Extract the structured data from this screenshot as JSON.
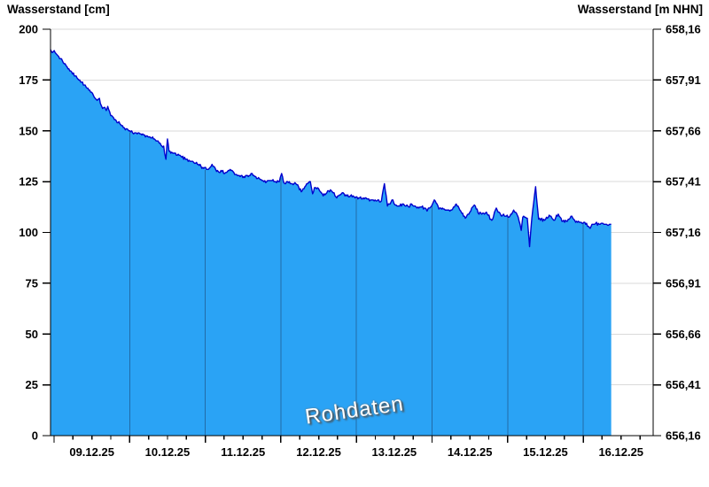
{
  "chart_data": {
    "type": "area",
    "title_left": "Wasserstand [cm]",
    "title_right": "Wasserstand [m NHN]",
    "watermark": "Rohdaten",
    "x_axis": {
      "tick_labels": [
        "09.12.25",
        "10.12.25",
        "11.12.25",
        "12.12.25",
        "13.12.25",
        "14.12.25",
        "15.12.25",
        "16.12.25"
      ],
      "major_ticks_days": [
        0,
        1,
        2,
        3,
        4,
        5,
        6,
        7
      ],
      "minor_step_days": 0.25,
      "domain_days": [
        -0.047,
        7.925
      ]
    },
    "y_left_axis": {
      "label": "Wasserstand [cm]",
      "min": 0,
      "max": 200,
      "tick_step": 25,
      "tick_labels": [
        "0",
        "25",
        "50",
        "75",
        "100",
        "125",
        "150",
        "175",
        "200"
      ]
    },
    "y_right_axis": {
      "label": "Wasserstand [m NHN]",
      "tick_labels": [
        "656,16",
        "656,41",
        "656,66",
        "656,91",
        "657,16",
        "657,41",
        "657,66",
        "657,91",
        "658,16"
      ]
    },
    "grid": {
      "horizontal": true,
      "day_boundary_lines": true
    },
    "series": [
      {
        "name": "Rohdaten",
        "unit": "cm",
        "points": [
          [
            -0.047,
            190
          ],
          [
            -0.01,
            189
          ],
          [
            0.05,
            187
          ],
          [
            0.11,
            184.5
          ],
          [
            0.16,
            182
          ],
          [
            0.22,
            179.5
          ],
          [
            0.28,
            177
          ],
          [
            0.34,
            175
          ],
          [
            0.4,
            172.5
          ],
          [
            0.46,
            170
          ],
          [
            0.52,
            167.5
          ],
          [
            0.57,
            165
          ],
          [
            0.6,
            166
          ],
          [
            0.63,
            162
          ],
          [
            0.66,
            161.5
          ],
          [
            0.69,
            160
          ],
          [
            0.71,
            162
          ],
          [
            0.75,
            157.5
          ],
          [
            0.81,
            155.5
          ],
          [
            0.87,
            153.5
          ],
          [
            0.93,
            151.5
          ],
          [
            0.99,
            150
          ],
          [
            1.04,
            149
          ],
          [
            1.1,
            148.5
          ],
          [
            1.16,
            148
          ],
          [
            1.22,
            147.5
          ],
          [
            1.28,
            146.5
          ],
          [
            1.34,
            145.5
          ],
          [
            1.39,
            144
          ],
          [
            1.45,
            142.5
          ],
          [
            1.48,
            136
          ],
          [
            1.5,
            146
          ],
          [
            1.52,
            140
          ],
          [
            1.57,
            139
          ],
          [
            1.63,
            138
          ],
          [
            1.69,
            137
          ],
          [
            1.75,
            136
          ],
          [
            1.81,
            135
          ],
          [
            1.86,
            134
          ],
          [
            1.92,
            133
          ],
          [
            1.98,
            131.5
          ],
          [
            2.04,
            131
          ],
          [
            2.09,
            133.5
          ],
          [
            2.16,
            130.5
          ],
          [
            2.22,
            130
          ],
          [
            2.27,
            129.5
          ],
          [
            2.33,
            131
          ],
          [
            2.39,
            128.5
          ],
          [
            2.45,
            128
          ],
          [
            2.51,
            127.5
          ],
          [
            2.57,
            127.5
          ],
          [
            2.62,
            129
          ],
          [
            2.68,
            126.5
          ],
          [
            2.74,
            126
          ],
          [
            2.8,
            124.5
          ],
          [
            2.86,
            125.5
          ],
          [
            2.92,
            125
          ],
          [
            2.98,
            125
          ],
          [
            3.01,
            129
          ],
          [
            3.04,
            124.5
          ],
          [
            3.1,
            124.5
          ],
          [
            3.15,
            124
          ],
          [
            3.21,
            123.5
          ],
          [
            3.27,
            120
          ],
          [
            3.33,
            123
          ],
          [
            3.39,
            125
          ],
          [
            3.42,
            119
          ],
          [
            3.45,
            122
          ],
          [
            3.5,
            121.5
          ],
          [
            3.56,
            118
          ],
          [
            3.62,
            120.5
          ],
          [
            3.68,
            120
          ],
          [
            3.74,
            117
          ],
          [
            3.8,
            119
          ],
          [
            3.86,
            118.5
          ],
          [
            3.92,
            118
          ],
          [
            3.97,
            117.5
          ],
          [
            4.03,
            117
          ],
          [
            4.09,
            117
          ],
          [
            4.15,
            116.5
          ],
          [
            4.21,
            116
          ],
          [
            4.27,
            115.5
          ],
          [
            4.33,
            115.5
          ],
          [
            4.37,
            124
          ],
          [
            4.41,
            113
          ],
          [
            4.47,
            116
          ],
          [
            4.5,
            114
          ],
          [
            4.56,
            113
          ],
          [
            4.62,
            114
          ],
          [
            4.68,
            113
          ],
          [
            4.74,
            113.5
          ],
          [
            4.79,
            112.5
          ],
          [
            4.85,
            112.5
          ],
          [
            4.91,
            112
          ],
          [
            4.94,
            111
          ],
          [
            4.97,
            112
          ],
          [
            5.03,
            116
          ],
          [
            5.09,
            111.5
          ],
          [
            5.15,
            111.5
          ],
          [
            5.2,
            111
          ],
          [
            5.26,
            111
          ],
          [
            5.32,
            114
          ],
          [
            5.38,
            110.5
          ],
          [
            5.44,
            107
          ],
          [
            5.5,
            110
          ],
          [
            5.56,
            113.5
          ],
          [
            5.61,
            109.5
          ],
          [
            5.67,
            109.5
          ],
          [
            5.73,
            109
          ],
          [
            5.79,
            106
          ],
          [
            5.85,
            112
          ],
          [
            5.91,
            108.5
          ],
          [
            5.97,
            108
          ],
          [
            6.03,
            108
          ],
          [
            6.08,
            111
          ],
          [
            6.14,
            107.5
          ],
          [
            6.18,
            101
          ],
          [
            6.2,
            107.5
          ],
          [
            6.26,
            107
          ],
          [
            6.29,
            93
          ],
          [
            6.32,
            107
          ],
          [
            6.37,
            122.5
          ],
          [
            6.41,
            106.5
          ],
          [
            6.44,
            106.5
          ],
          [
            6.49,
            106
          ],
          [
            6.55,
            108.5
          ],
          [
            6.61,
            106
          ],
          [
            6.67,
            109
          ],
          [
            6.73,
            105.5
          ],
          [
            6.79,
            105.5
          ],
          [
            6.85,
            108
          ],
          [
            6.9,
            105
          ],
          [
            6.96,
            105
          ],
          [
            7.02,
            105
          ],
          [
            7.08,
            102.5
          ],
          [
            7.14,
            104
          ],
          [
            7.2,
            104.5
          ],
          [
            7.26,
            104.5
          ],
          [
            7.31,
            104
          ],
          [
            7.37,
            104
          ]
        ]
      }
    ],
    "noise_render": {
      "amplitude_cm": 0.7,
      "step_days": 0.012,
      "quantize_cm": 0.5,
      "seed": 7
    },
    "colors": {
      "fill": "#2AA3F5",
      "line": "#0000CD",
      "grid": "#DADADA",
      "axis": "#000000",
      "day_line": "#1A3E66",
      "text": "#000000",
      "watermark_text": "#FFFFFF",
      "watermark_shadow": "#4D4D4D"
    }
  }
}
